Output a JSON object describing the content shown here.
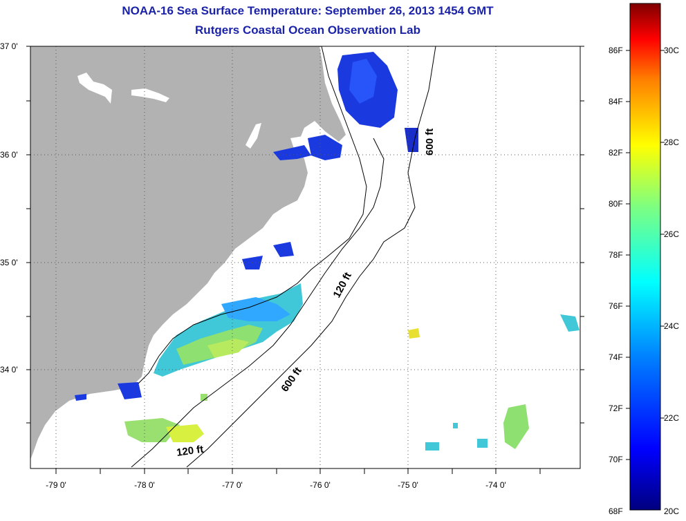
{
  "title_line1": "NOAA-16 Sea Surface Temperature:  September 26, 2013 1454 GMT",
  "title_line2": "Rutgers Coastal Ocean Observation Lab",
  "lat_labels": [
    "37 0'",
    "36 0'",
    "35 0'",
    "34 0'"
  ],
  "lon_labels": [
    "-79 0'",
    "-78 0'",
    "-77 0'",
    "-76 0'",
    "-75 0'",
    "-74 0'"
  ],
  "depth_contours": [
    "120 ft",
    "600 ft",
    "120 ft",
    "600 ft"
  ],
  "colorbar": {
    "f_labels": [
      "86F",
      "84F",
      "82F",
      "80F",
      "78F",
      "76F",
      "74F",
      "72F",
      "70F",
      "68F"
    ],
    "c_labels": [
      "30C",
      "28C",
      "26C",
      "24C",
      "22C",
      "20C"
    ],
    "colors": [
      "#00007f",
      "#0000ff",
      "#007fff",
      "#00ffff",
      "#7fff7f",
      "#ffff00",
      "#ff7f00",
      "#ff0000",
      "#7f0000"
    ]
  },
  "colors": {
    "land": "#b2b2b2",
    "title": "#1a22a8"
  }
}
